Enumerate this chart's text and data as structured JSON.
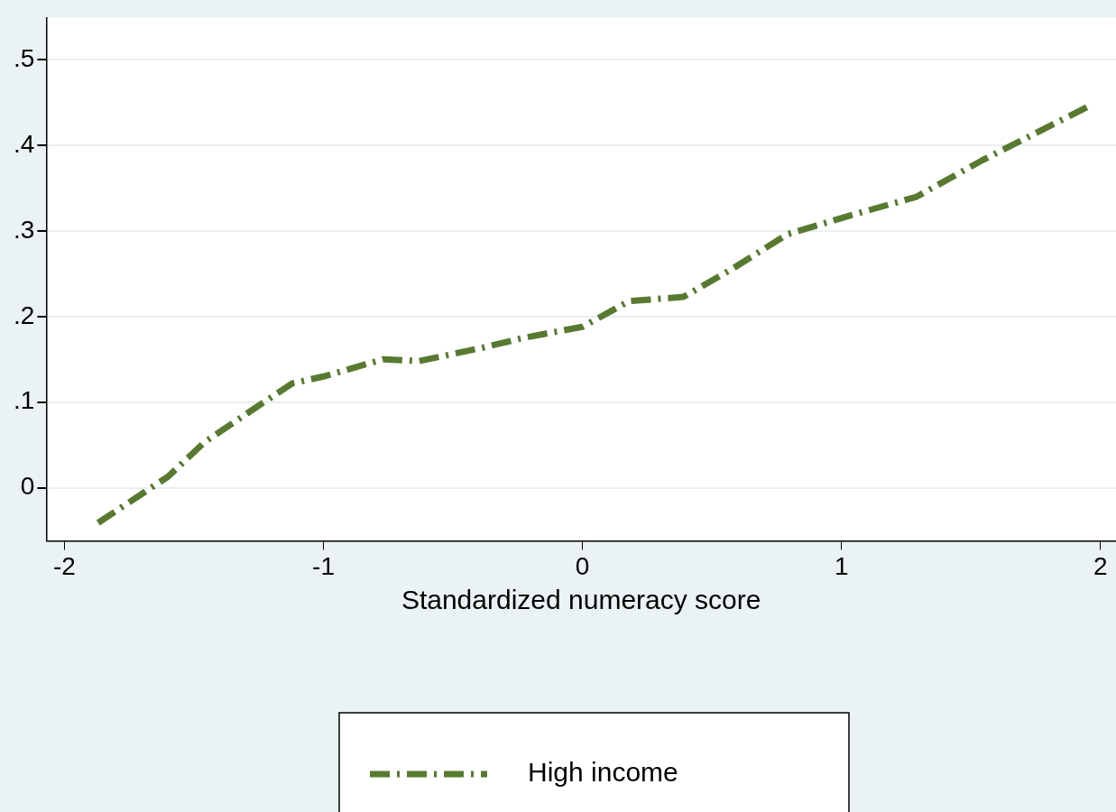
{
  "chart_data": {
    "type": "line",
    "xlabel": "Standardized numeracy score",
    "xlim": [
      -2.07,
      2.06
    ],
    "xticks": [
      -2,
      -1,
      0,
      1,
      2
    ],
    "ylim": [
      -0.062,
      0.549
    ],
    "yticks": [
      0,
      {
        "value": 0.1,
        "label": ".1"
      },
      {
        "value": 0.2,
        "label": ".2"
      },
      {
        "value": 0.3,
        "label": ".3"
      },
      {
        "value": 0.4,
        "label": ".4"
      },
      {
        "value": 0.5,
        "label": ".5"
      }
    ],
    "grid": "y",
    "legend": "bottom",
    "line_style": "dashdot",
    "marker": "none",
    "series": [
      {
        "name": "High income",
        "color": "#587a30",
        "x": [
          -1.87,
          -1.6,
          -1.46,
          -1.24,
          -1.12,
          -1.0,
          -0.77,
          -0.63,
          -0.38,
          -0.23,
          0.0,
          0.18,
          0.39,
          0.58,
          0.79,
          1.01,
          1.29,
          1.54,
          1.95
        ],
        "values": [
          -0.041,
          0.013,
          0.053,
          0.098,
          0.122,
          0.13,
          0.15,
          0.148,
          0.164,
          0.175,
          0.188,
          0.218,
          0.223,
          0.256,
          0.296,
          0.316,
          0.34,
          0.382,
          0.445
        ]
      }
    ]
  }
}
